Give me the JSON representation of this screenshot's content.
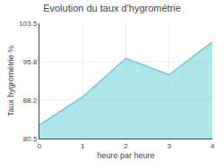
{
  "chart_data": {
    "type": "area",
    "title": "Evolution du taux d'hygrométrie",
    "x_label": "heure par heure",
    "y_label": "Taux hygrométrie %",
    "x": [
      0,
      1,
      2,
      3,
      4
    ],
    "values": [
      83.2,
      88.8,
      96.5,
      93.2,
      99.8
    ],
    "color": "#62cdd4",
    "xlim": [
      0,
      4
    ],
    "xticks": [
      0,
      1,
      2,
      3,
      4
    ],
    "ylim": [
      80.5,
      103.5
    ],
    "yticks": [
      80.5,
      88.2,
      95.8,
      103.5
    ],
    "grid": true
  }
}
